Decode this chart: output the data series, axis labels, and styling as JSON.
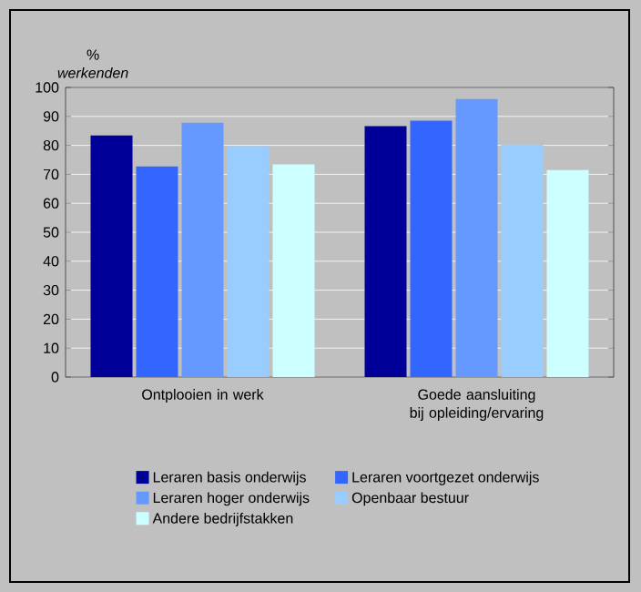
{
  "chart_data": {
    "type": "bar",
    "ylabel": "% *werkenden*",
    "categories": [
      "Ontplooien in werk",
      "Goede aansluiting bij opleiding/ervaring"
    ],
    "series": [
      {
        "name": "Leraren basis onderwijs",
        "color": "#000099",
        "values": [
          83.4,
          86.6
        ]
      },
      {
        "name": "Leraren voortgezet onderwijs",
        "color": "#3366ff",
        "values": [
          72.7,
          88.5
        ]
      },
      {
        "name": "Leraren hoger onderwijs",
        "color": "#6699ff",
        "values": [
          87.8,
          96.0
        ]
      },
      {
        "name": "Openbaar bestuur",
        "color": "#99ccff",
        "values": [
          79.7,
          80.3
        ]
      },
      {
        "name": "Andere bedrijfstakken",
        "color": "#ccffff",
        "values": [
          73.4,
          71.5
        ]
      }
    ],
    "ylim": [
      0,
      100
    ],
    "yticks": [
      0,
      10,
      20,
      30,
      40,
      50,
      60,
      70,
      80,
      90,
      100
    ],
    "grid": "y",
    "legend": "bottom"
  }
}
